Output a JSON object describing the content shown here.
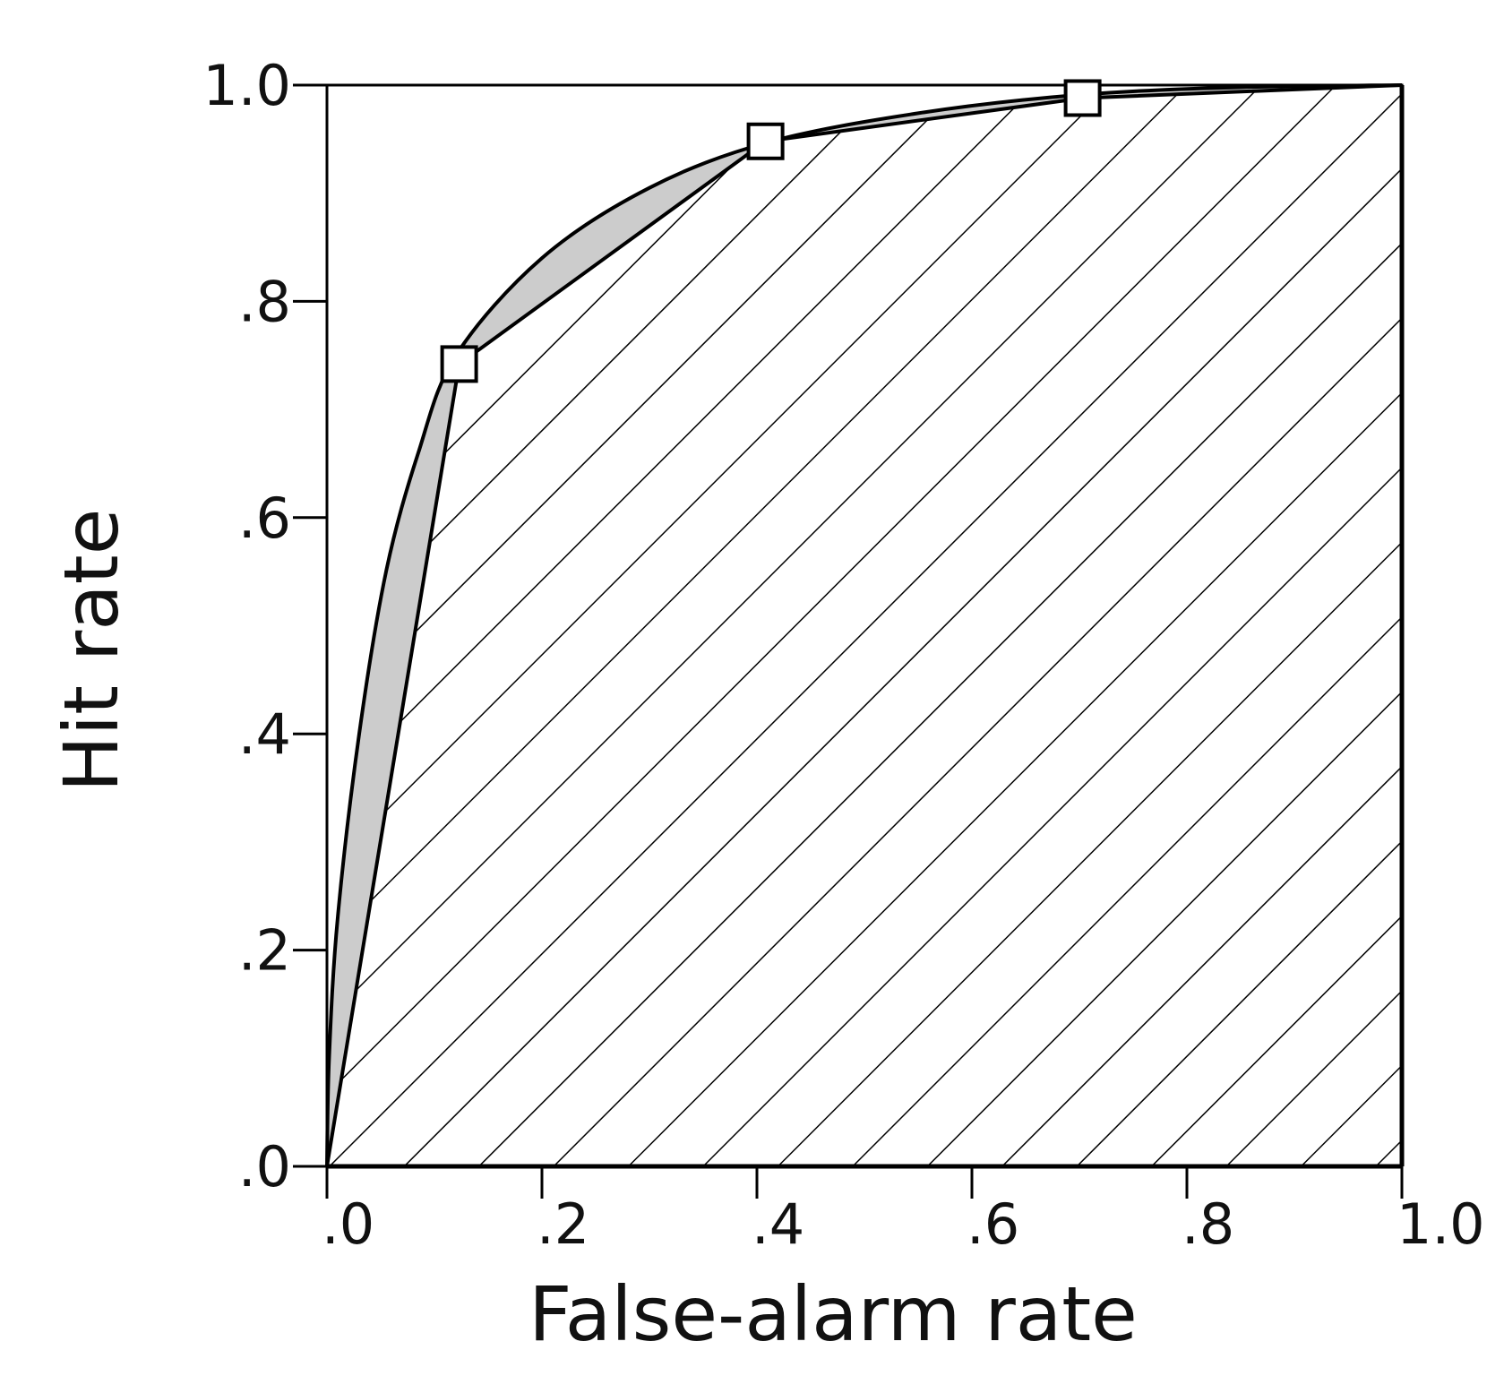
{
  "chart_data": {
    "type": "line",
    "xlabel": "False-alarm rate",
    "ylabel": "Hit rate",
    "xlim": [
      0,
      1
    ],
    "ylim": [
      0,
      1
    ],
    "x_ticks": [
      0,
      0.2,
      0.4,
      0.6,
      0.8,
      1.0
    ],
    "y_ticks": [
      0,
      0.2,
      0.4,
      0.6,
      0.8,
      1.0
    ],
    "x_tick_labels": [
      ".0",
      ".2",
      ".4",
      ".6",
      ".8",
      "1.0"
    ],
    "y_tick_labels": [
      ".0",
      ".2",
      ".4",
      ".6",
      ".8",
      "1.0"
    ],
    "grid": false,
    "series": [
      {
        "style": "smooth-curve",
        "points": [
          {
            "x": 0.0,
            "y": 0.0
          },
          {
            "x": 0.002,
            "y": 0.1
          },
          {
            "x": 0.01,
            "y": 0.23
          },
          {
            "x": 0.03,
            "y": 0.4
          },
          {
            "x": 0.055,
            "y": 0.55
          },
          {
            "x": 0.085,
            "y": 0.66
          },
          {
            "x": 0.12,
            "y": 0.75
          },
          {
            "x": 0.2,
            "y": 0.84
          },
          {
            "x": 0.3,
            "y": 0.905
          },
          {
            "x": 0.41,
            "y": 0.947
          },
          {
            "x": 0.55,
            "y": 0.974
          },
          {
            "x": 0.7,
            "y": 0.991
          },
          {
            "x": 0.85,
            "y": 0.998
          },
          {
            "x": 1.0,
            "y": 1.0
          }
        ]
      },
      {
        "style": "straight-segments-with-square-markers",
        "points": [
          {
            "x": 0.0,
            "y": 0.0
          },
          {
            "x": 0.123,
            "y": 0.742
          },
          {
            "x": 0.408,
            "y": 0.948
          },
          {
            "x": 0.703,
            "y": 0.988
          },
          {
            "x": 1.0,
            "y": 1.0
          }
        ],
        "markers": [
          {
            "x": 0.123,
            "y": 0.742
          },
          {
            "x": 0.408,
            "y": 0.948
          },
          {
            "x": 0.703,
            "y": 0.988
          }
        ]
      }
    ],
    "regions": [
      {
        "fill": "hatched",
        "between": "polyline and x-axis"
      },
      {
        "fill": "#cccccc",
        "between": "smooth curve and polyline"
      }
    ],
    "colors": {
      "shaded_region": "#cccccc",
      "line": "#000000",
      "marker_fill": "#ffffff"
    }
  }
}
